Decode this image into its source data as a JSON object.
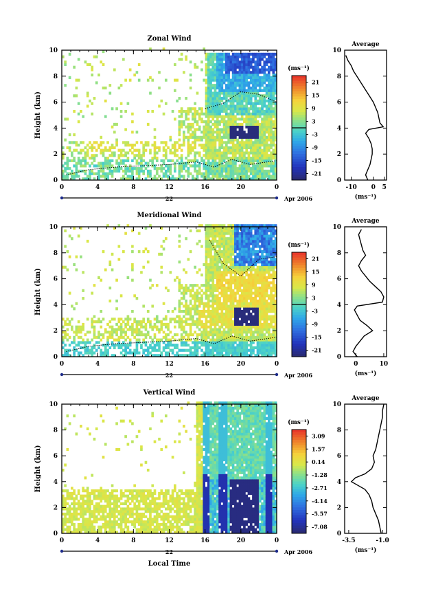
{
  "xlabel": "Local Time",
  "date_label": "Apr 2006",
  "day_label": "22",
  "unit_label": "(ms⁻¹)",
  "chart_data": [
    {
      "type": "heatmap",
      "title": "Zonal Wind",
      "ylabel": "Height (km)",
      "xticks": [
        "0",
        "4",
        "8",
        "12",
        "16",
        "20",
        "0"
      ],
      "yticks": [
        "0",
        "2",
        "4",
        "6",
        "8",
        "10"
      ],
      "xlim": [
        0,
        24
      ],
      "ylim": [
        0,
        10
      ],
      "colorbar": {
        "label": "(ms⁻¹)",
        "ticks": [
          "21",
          "15",
          "9",
          "3",
          "-3",
          "-9",
          "-15",
          "-21"
        ],
        "range": [
          -24,
          24
        ]
      },
      "average": {
        "title": "Average",
        "xlabel": "(ms⁻¹)",
        "xticks": [
          "-10",
          "0",
          "5"
        ],
        "xlim": [
          -13,
          6
        ],
        "yticks": [
          "0",
          "2",
          "4",
          "6",
          "8",
          "10"
        ],
        "profile": [
          [
            -2.5,
            0
          ],
          [
            -3.5,
            0.4
          ],
          [
            -2.5,
            0.8
          ],
          [
            -1.5,
            1.2
          ],
          [
            -1.0,
            1.6
          ],
          [
            -0.5,
            2.0
          ],
          [
            -0.5,
            2.4
          ],
          [
            -1.0,
            2.8
          ],
          [
            -2.0,
            3.2
          ],
          [
            -3.5,
            3.6
          ],
          [
            -2.0,
            3.9
          ],
          [
            4.5,
            4.1
          ],
          [
            3.0,
            4.4
          ],
          [
            2.5,
            4.8
          ],
          [
            2.0,
            5.2
          ],
          [
            1.0,
            5.6
          ],
          [
            0.0,
            6.0
          ],
          [
            -1.5,
            6.4
          ],
          [
            -3.0,
            6.8
          ],
          [
            -4.5,
            7.2
          ],
          [
            -6.0,
            7.6
          ],
          [
            -7.5,
            8.0
          ],
          [
            -9.0,
            8.4
          ],
          [
            -10.0,
            8.8
          ],
          [
            -11.5,
            9.2
          ],
          [
            -12.5,
            9.6
          ]
        ]
      }
    },
    {
      "type": "heatmap",
      "title": "Meridional Wind",
      "ylabel": "Height (km)",
      "xticks": [
        "0",
        "4",
        "8",
        "12",
        "16",
        "20",
        "0"
      ],
      "yticks": [
        "0",
        "2",
        "4",
        "6",
        "8",
        "10"
      ],
      "xlim": [
        0,
        24
      ],
      "ylim": [
        0,
        10
      ],
      "colorbar": {
        "label": "(ms⁻¹)",
        "ticks": [
          "21",
          "15",
          "9",
          "3",
          "-3",
          "-9",
          "-15",
          "-21"
        ],
        "range": [
          -24,
          24
        ]
      },
      "average": {
        "title": "Average",
        "xlabel": "(ms⁻¹)",
        "xticks": [
          "0",
          "10"
        ],
        "xlim": [
          -4,
          11
        ],
        "yticks": [
          "0",
          "2",
          "4",
          "6",
          "8",
          "10"
        ],
        "profile": [
          [
            0.5,
            0
          ],
          [
            -1.0,
            0.4
          ],
          [
            0.0,
            0.8
          ],
          [
            1.5,
            1.2
          ],
          [
            3.0,
            1.6
          ],
          [
            6.0,
            2.0
          ],
          [
            4.0,
            2.4
          ],
          [
            1.5,
            2.8
          ],
          [
            0.5,
            3.2
          ],
          [
            -0.5,
            3.6
          ],
          [
            0.5,
            3.9
          ],
          [
            9.5,
            4.2
          ],
          [
            10.0,
            4.6
          ],
          [
            9.0,
            5.0
          ],
          [
            7.0,
            5.4
          ],
          [
            5.0,
            5.8
          ],
          [
            3.5,
            6.2
          ],
          [
            2.0,
            6.6
          ],
          [
            1.0,
            7.0
          ],
          [
            2.0,
            7.4
          ],
          [
            3.5,
            7.8
          ],
          [
            2.5,
            8.2
          ],
          [
            2.0,
            8.6
          ],
          [
            1.5,
            9.0
          ],
          [
            1.0,
            9.4
          ],
          [
            2.0,
            9.8
          ]
        ]
      }
    },
    {
      "type": "heatmap",
      "title": "Vertical Wind",
      "ylabel": "Height (km)",
      "xticks": [
        "0",
        "4",
        "8",
        "12",
        "16",
        "20",
        "0"
      ],
      "yticks": [
        "0",
        "2",
        "4",
        "6",
        "8",
        "10"
      ],
      "xlim": [
        0,
        24
      ],
      "ylim": [
        0,
        10
      ],
      "colorbar": {
        "label": "(ms⁻¹)",
        "ticks": [
          "3.09",
          "1.57",
          "0.14",
          "-1.28",
          "-2.71",
          "-4.14",
          "-5.57",
          "-7.08"
        ],
        "range": [
          -7.8,
          3.8
        ]
      },
      "average": {
        "title": "Average",
        "xlabel": "(ms⁻¹)",
        "xticks": [
          "-3.5",
          "-1.0"
        ],
        "xlim": [
          -3.8,
          -0.7
        ],
        "yticks": [
          "0",
          "2",
          "4",
          "6",
          "8",
          "10"
        ],
        "profile": [
          [
            -1.1,
            0
          ],
          [
            -1.2,
            0.5
          ],
          [
            -1.3,
            1.0
          ],
          [
            -1.5,
            1.5
          ],
          [
            -1.7,
            2.0
          ],
          [
            -1.8,
            2.5
          ],
          [
            -2.0,
            3.0
          ],
          [
            -2.3,
            3.4
          ],
          [
            -2.8,
            3.7
          ],
          [
            -3.3,
            4.0
          ],
          [
            -3.0,
            4.3
          ],
          [
            -2.3,
            4.6
          ],
          [
            -1.8,
            5.0
          ],
          [
            -1.6,
            5.5
          ],
          [
            -1.7,
            6.0
          ],
          [
            -1.5,
            6.5
          ],
          [
            -1.4,
            7.0
          ],
          [
            -1.3,
            7.5
          ],
          [
            -1.2,
            8.0
          ],
          [
            -1.1,
            8.5
          ],
          [
            -1.0,
            9.0
          ],
          [
            -1.0,
            9.5
          ],
          [
            -0.9,
            10.0
          ]
        ]
      }
    }
  ]
}
